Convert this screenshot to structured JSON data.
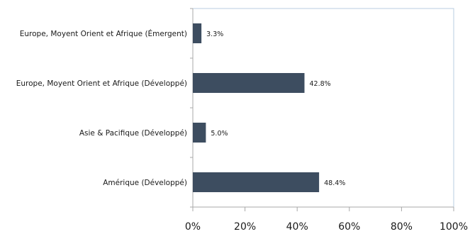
{
  "chart_data": {
    "type": "bar",
    "orientation": "horizontal",
    "categories": [
      "Europe, Moyent Orient et Afrique (Émergent)",
      "Europe, Moyent Orient et Afrique (Développé)",
      "Asie & Pacifique (Développé)",
      "Amérique (Développé)"
    ],
    "values": [
      3.3,
      42.8,
      5.0,
      48.4
    ],
    "value_labels": [
      "3.3%",
      "42.8%",
      "5.0%",
      "48.4%"
    ],
    "xticks": [
      0,
      20,
      40,
      60,
      80,
      100
    ],
    "xtick_labels": [
      "0%",
      "20%",
      "40%",
      "60%",
      "80%",
      "100%"
    ],
    "xlim": [
      0,
      100
    ],
    "grid": false,
    "colors": {
      "bar": "#3d4d60",
      "frame": "#b9cde0",
      "axis": "#a8a8a8"
    }
  }
}
